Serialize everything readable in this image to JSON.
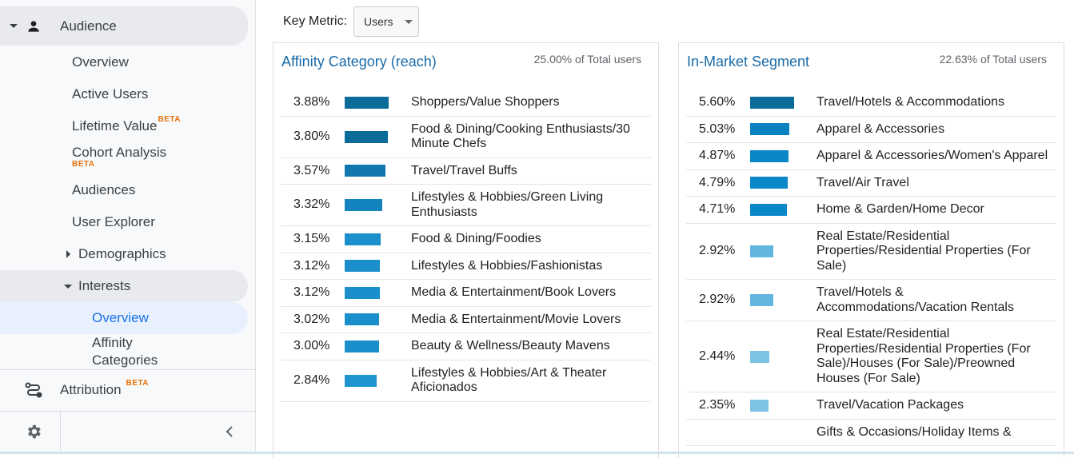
{
  "sidebar": {
    "audience": "Audience",
    "items": [
      "Overview",
      "Active Users",
      "Lifetime Value",
      "Cohort Analysis",
      "Audiences",
      "User Explorer"
    ],
    "beta": "BETA",
    "demographics": "Demographics",
    "interests": "Interests",
    "interests_overview": "Overview",
    "affinity": "Affinity Categories",
    "attribution": "Attribution"
  },
  "toolbar": {
    "key_metric_label": "Key Metric:",
    "key_metric_value": "Users"
  },
  "affinity": {
    "title": "Affinity Category (reach)",
    "total": "25.00% of Total users",
    "rows": [
      {
        "pct": "3.88%",
        "value": 3.88,
        "color": "#0b6b99",
        "label": "Shoppers/Value Shoppers"
      },
      {
        "pct": "3.80%",
        "value": 3.8,
        "color": "#0b6b99",
        "label": "Food & Dining/Cooking Enthusiasts/30 Minute Chefs"
      },
      {
        "pct": "3.57%",
        "value": 3.57,
        "color": "#1178ad",
        "label": "Travel/Travel Buffs"
      },
      {
        "pct": "3.32%",
        "value": 3.32,
        "color": "#1484bf",
        "label": "Lifestyles & Hobbies/Green Living Enthusiasts"
      },
      {
        "pct": "3.15%",
        "value": 3.15,
        "color": "#1a8fcb",
        "label": "Food & Dining/Foodies"
      },
      {
        "pct": "3.12%",
        "value": 3.12,
        "color": "#1a8fcb",
        "label": "Lifestyles & Hobbies/Fashionistas"
      },
      {
        "pct": "3.12%",
        "value": 3.12,
        "color": "#1a8fcb",
        "label": "Media & Entertainment/Book Lovers"
      },
      {
        "pct": "3.02%",
        "value": 3.02,
        "color": "#1a8fcb",
        "label": "Media & Entertainment/Movie Lovers"
      },
      {
        "pct": "3.00%",
        "value": 3.0,
        "color": "#1a8fcb",
        "label": "Beauty & Wellness/Beauty Mavens"
      },
      {
        "pct": "2.84%",
        "value": 2.84,
        "color": "#1f95d0",
        "label": "Lifestyles & Hobbies/Art & Theater Aficionados"
      }
    ]
  },
  "inmarket": {
    "title": "In-Market Segment",
    "total": "22.63% of Total users",
    "rows": [
      {
        "pct": "5.60%",
        "value": 5.6,
        "color": "#0b6b99",
        "label": "Travel/Hotels & Accommodations"
      },
      {
        "pct": "5.03%",
        "value": 5.03,
        "color": "#0a82c0",
        "label": "Apparel & Accessories"
      },
      {
        "pct": "4.87%",
        "value": 4.87,
        "color": "#0a87c6",
        "label": "Apparel & Accessories/Women's Apparel"
      },
      {
        "pct": "4.79%",
        "value": 4.79,
        "color": "#0a87c6",
        "label": "Travel/Air Travel"
      },
      {
        "pct": "4.71%",
        "value": 4.71,
        "color": "#0a87c6",
        "label": "Home & Garden/Home Decor"
      },
      {
        "pct": "2.92%",
        "value": 2.92,
        "color": "#62b5dc",
        "label": "Real Estate/Residential Properties/Residential Properties (For Sale)"
      },
      {
        "pct": "2.92%",
        "value": 2.92,
        "color": "#62b5dc",
        "label": "Travel/Hotels & Accommodations/Vacation Rentals"
      },
      {
        "pct": "2.44%",
        "value": 2.44,
        "color": "#7cc3e3",
        "label": "Real Estate/Residential Properties/Residential Properties (For Sale)/Houses (For Sale)/Preowned Houses (For Sale)"
      },
      {
        "pct": "2.35%",
        "value": 2.35,
        "color": "#7cc3e3",
        "label": "Travel/Vacation Packages"
      },
      {
        "pct": "",
        "value": null,
        "color": "#7cc3e3",
        "label": "Gifts & Occasions/Holiday Items &"
      }
    ]
  }
}
